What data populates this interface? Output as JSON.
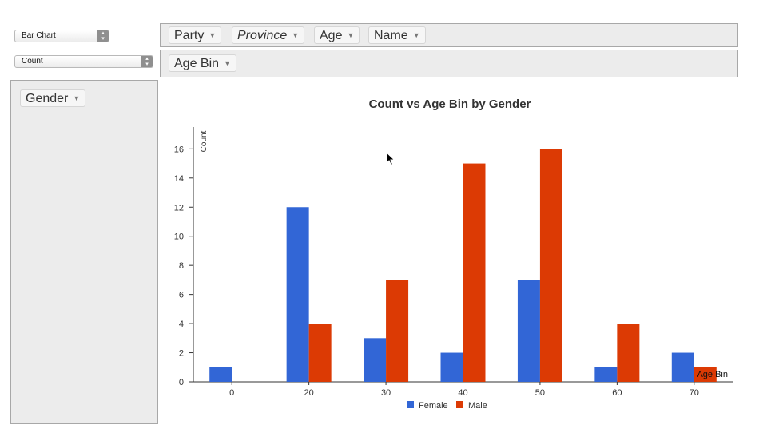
{
  "renderer_select": {
    "value": "Bar Chart"
  },
  "aggregator_select": {
    "value": "Count"
  },
  "column_fields": [
    {
      "label": "Party",
      "italic": false
    },
    {
      "label": "Province",
      "italic": true
    },
    {
      "label": "Age",
      "italic": false
    },
    {
      "label": "Name",
      "italic": false
    }
  ],
  "row_fields": [
    {
      "label": "Age Bin"
    }
  ],
  "unused_fields": [
    {
      "label": "Gender"
    }
  ],
  "colors": {
    "female": "#3266d6",
    "male": "#dc3a04"
  },
  "chart_data": {
    "type": "bar",
    "title": "Count vs Age Bin by Gender",
    "xlabel": "Age Bin",
    "ylabel": "Count",
    "categories": [
      "0",
      "20",
      "30",
      "40",
      "50",
      "60",
      "70"
    ],
    "series": [
      {
        "name": "Female",
        "values": [
          1,
          12,
          3,
          2,
          7,
          1,
          2
        ]
      },
      {
        "name": "Male",
        "values": [
          0,
          4,
          7,
          15,
          16,
          4,
          1
        ]
      }
    ],
    "yticks": [
      0,
      2,
      4,
      6,
      8,
      10,
      12,
      14,
      16
    ],
    "ylim": [
      0,
      17.5
    ],
    "legend_position": "bottom",
    "grid": false
  }
}
